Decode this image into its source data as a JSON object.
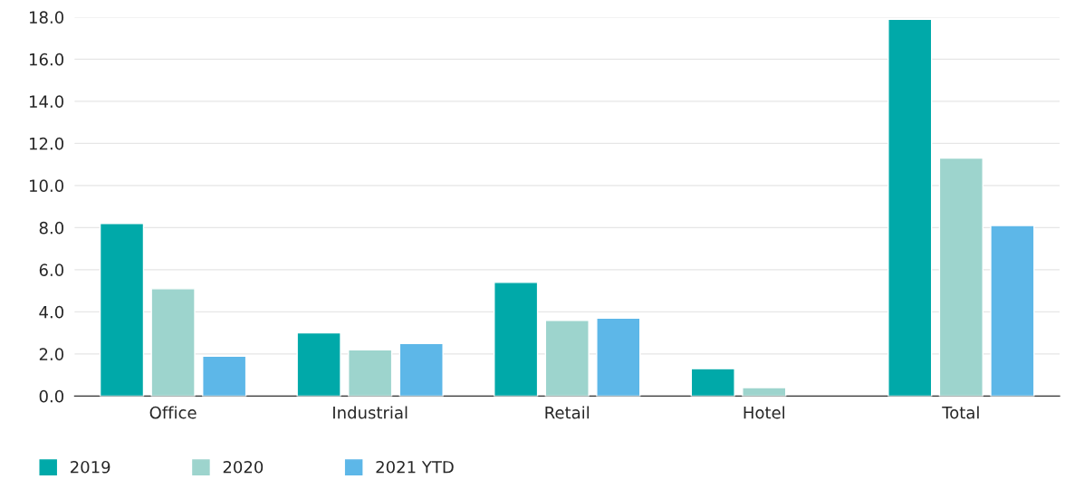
{
  "chart_data": {
    "type": "bar",
    "categories": [
      "Office",
      "Industrial",
      "Retail",
      "Hotel",
      "Total"
    ],
    "series": [
      {
        "name": "2019",
        "color": "#00a9a9",
        "values": [
          8.2,
          3.0,
          5.4,
          1.3,
          17.9
        ]
      },
      {
        "name": "2020",
        "color": "#9dd4cd",
        "values": [
          5.1,
          2.2,
          3.6,
          0.4,
          11.3
        ]
      },
      {
        "name": "2021 YTD",
        "color": "#5db7e8",
        "values": [
          1.9,
          2.5,
          3.7,
          null,
          8.1
        ]
      }
    ],
    "ylim": [
      0,
      18
    ],
    "yticks": [
      {
        "value": 0,
        "label": "0.0"
      },
      {
        "value": 2,
        "label": "2.0"
      },
      {
        "value": 4,
        "label": "4.0"
      },
      {
        "value": 6,
        "label": "6.0"
      },
      {
        "value": 8,
        "label": "8.0"
      },
      {
        "value": 10,
        "label": "10.0"
      },
      {
        "value": 12,
        "label": "12.0"
      },
      {
        "value": 14,
        "label": "14.0"
      },
      {
        "value": 16,
        "label": "16.0"
      },
      {
        "value": 18,
        "label": "18.0"
      }
    ],
    "grid": "y",
    "legend": "bottom left"
  }
}
